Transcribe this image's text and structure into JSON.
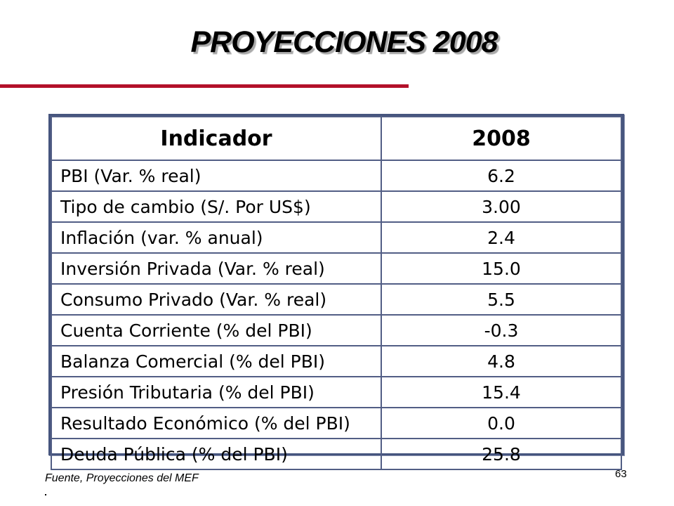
{
  "slide": {
    "title": "PROYECCIONES 2008",
    "accent_color": "#b3102a",
    "table_border_color": "#46557e",
    "page_number": "63",
    "source": "Fuente, Proyecciones del MEF"
  },
  "table": {
    "headers": [
      "Indicador",
      "2008"
    ],
    "rows": [
      {
        "indicator": "PBI (Var. % real)",
        "value": "6.2"
      },
      {
        "indicator": "Tipo de cambio (S/. Por US$)",
        "value": "3.00"
      },
      {
        "indicator": "Inflación (var. % anual)",
        "value": "2.4"
      },
      {
        "indicator": "Inversión Privada (Var. % real)",
        "value": "15.0"
      },
      {
        "indicator": "Consumo Privado (Var. % real)",
        "value": "5.5"
      },
      {
        "indicator": "Cuenta Corriente (% del PBI)",
        "value": "-0.3"
      },
      {
        "indicator": "Balanza Comercial (% del PBI)",
        "value": "4.8"
      },
      {
        "indicator": "Presión Tributaria (% del PBI)",
        "value": "15.4"
      },
      {
        "indicator": "Resultado Económico (% del PBI)",
        "value": "0.0"
      },
      {
        "indicator": "Deuda Pública (% del PBI)",
        "value": "25.8"
      }
    ]
  }
}
